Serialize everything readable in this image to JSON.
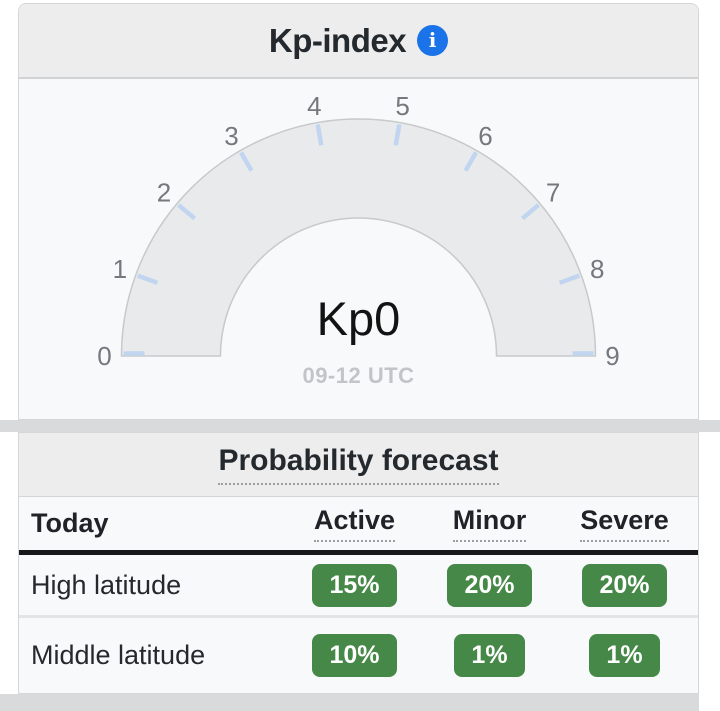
{
  "header": {
    "title": "Kp-index",
    "info_icon": "info-circle"
  },
  "gauge": {
    "type": "gauge",
    "value": 0,
    "min": 0,
    "max": 9,
    "value_label": "Kp0",
    "period": "09-12 UTC",
    "ticks": [
      "0",
      "1",
      "2",
      "3",
      "4",
      "5",
      "6",
      "7",
      "8",
      "9"
    ],
    "arc_fill": "#e9eaec",
    "arc_stroke": "#c8c9cb",
    "tick_color": "#c1d5f0",
    "tick_label_color": "#75787c"
  },
  "forecast": {
    "title": "Probability forecast",
    "columns": [
      "Today",
      "Active",
      "Minor",
      "Severe"
    ],
    "rows": [
      {
        "label": "High latitude",
        "values": [
          "15%",
          "20%",
          "20%"
        ]
      },
      {
        "label": "Middle latitude",
        "values": [
          "10%",
          "1%",
          "1%"
        ]
      }
    ]
  },
  "colors": {
    "accent_blue": "#1a73e8",
    "badge_green": "#468847",
    "header_band": "#ededee",
    "section_bg": "#f8f9fa",
    "divider_strip": "#d9dadc"
  }
}
